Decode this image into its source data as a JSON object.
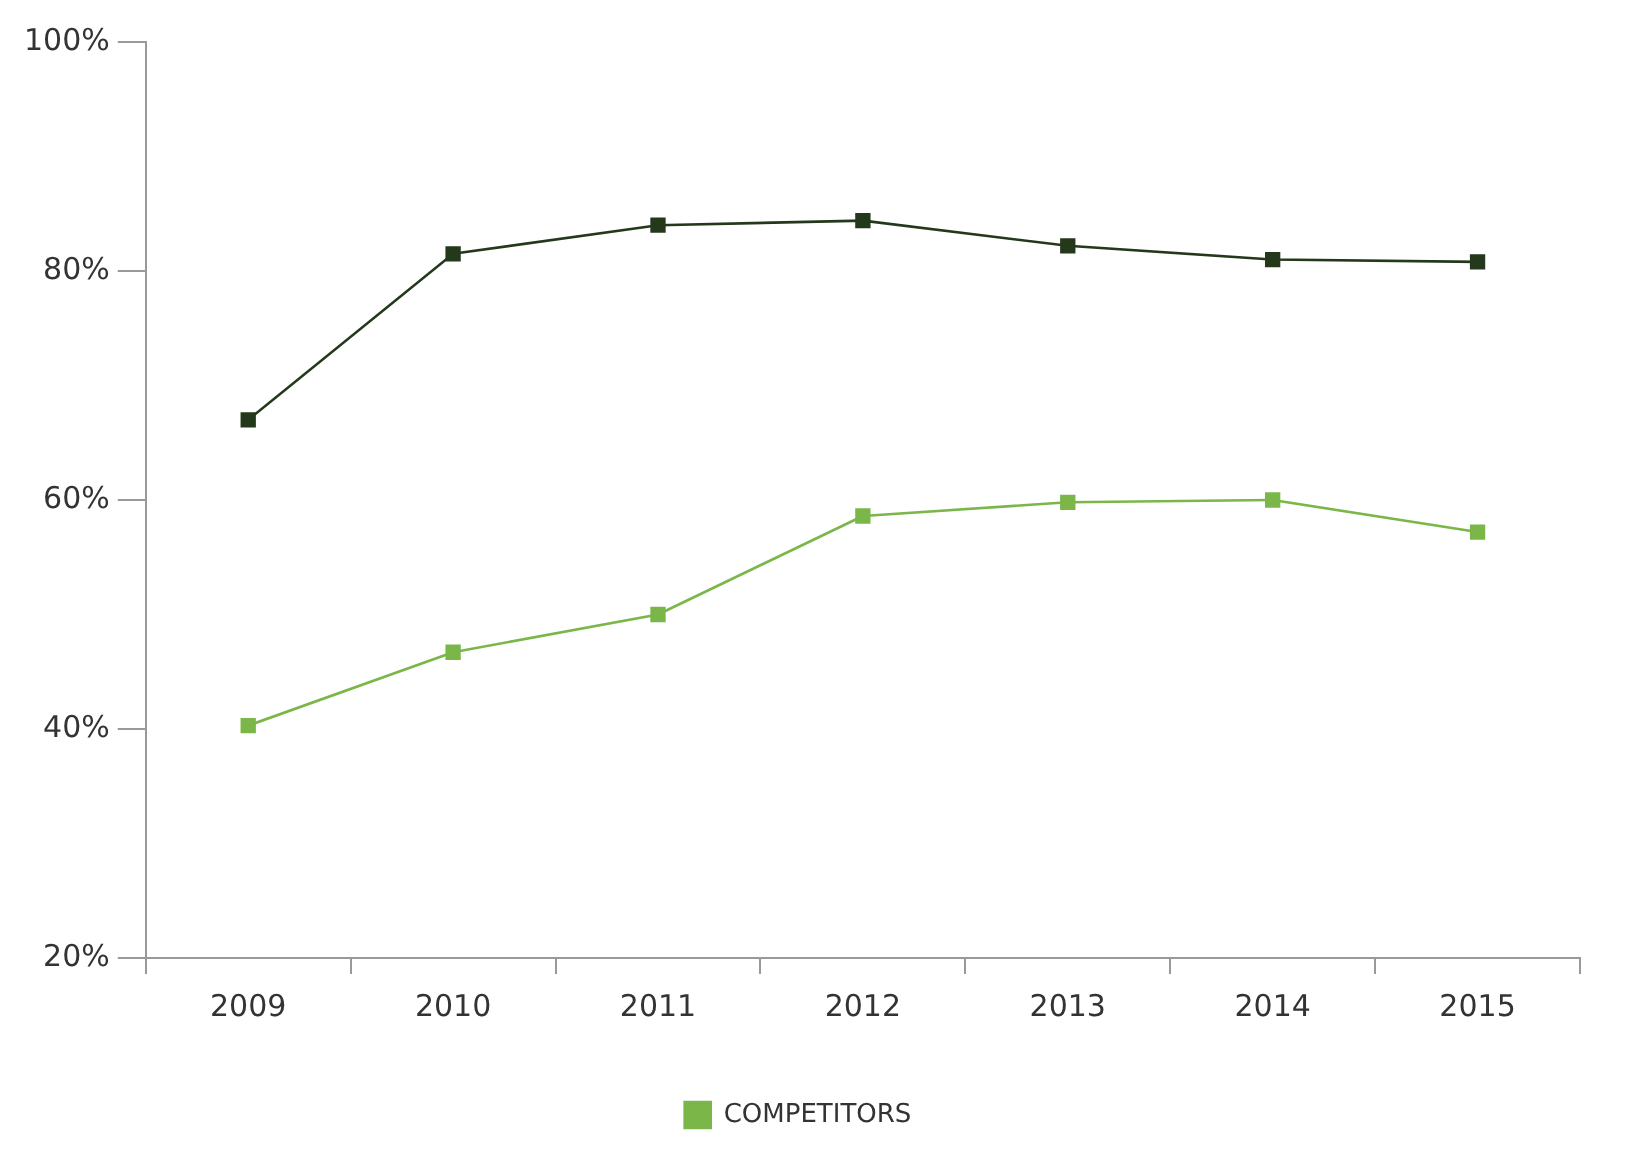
{
  "chart_data": {
    "type": "line",
    "categories": [
      "2009",
      "2010",
      "2011",
      "2012",
      "2013",
      "2014",
      "2015"
    ],
    "series": [
      {
        "color": "#24381b",
        "values": [
          67,
          81.5,
          84,
          84.4,
          82.2,
          81,
          80.8
        ]
      },
      {
        "name": "COMPETITORS",
        "color": "#7ab648",
        "values": [
          40.3,
          46.7,
          50,
          58.6,
          59.8,
          60,
          57.2
        ]
      }
    ],
    "ylim": [
      20,
      100
    ],
    "yticks": [
      {
        "value": 20,
        "label": "20%"
      },
      {
        "value": 40,
        "label": "40%"
      },
      {
        "value": 60,
        "label": "60%"
      },
      {
        "value": 80,
        "label": "80%"
      },
      {
        "value": 100,
        "label": "100%"
      }
    ],
    "grid": false,
    "legend": "bottom",
    "marker": "square",
    "line_style": "solid"
  }
}
